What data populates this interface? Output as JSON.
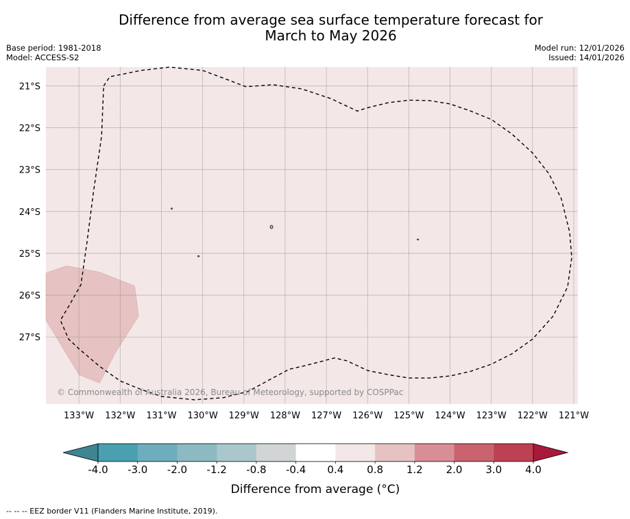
{
  "title_line1": "Difference from average sea surface temperature forecast for",
  "title_line2": "March to May 2026",
  "base_period": "Base period: 1981-2018",
  "model": "Model: ACCESS-S2",
  "model_run": "Model run: 12/01/2026",
  "issued": "Issued: 14/01/2026",
  "copyright": "© Commonwealth of Australia 2026, Bureau of Meteorology, supported by COSPPac",
  "footer": "--  --  -- EEZ border V11 (Flanders Marine Institute, 2019).",
  "map": {
    "lon_range": [
      -133.8,
      -120.9
    ],
    "lat_range": [
      -28.6,
      -20.55
    ],
    "lat_ticks": [
      {
        "value": -21,
        "label": "21°S"
      },
      {
        "value": -22,
        "label": "22°S"
      },
      {
        "value": -23,
        "label": "23°S"
      },
      {
        "value": -24,
        "label": "24°S"
      },
      {
        "value": -25,
        "label": "25°S"
      },
      {
        "value": -26,
        "label": "26°S"
      },
      {
        "value": -27,
        "label": "27°S"
      }
    ],
    "lon_ticks": [
      {
        "value": -133,
        "label": "133°W"
      },
      {
        "value": -132,
        "label": "132°W"
      },
      {
        "value": -131,
        "label": "131°W"
      },
      {
        "value": -130,
        "label": "130°W"
      },
      {
        "value": -129,
        "label": "129°W"
      },
      {
        "value": -128,
        "label": "128°W"
      },
      {
        "value": -127,
        "label": "127°W"
      },
      {
        "value": -126,
        "label": "126°W"
      },
      {
        "value": -125,
        "label": "125°W"
      },
      {
        "value": -124,
        "label": "124°W"
      },
      {
        "value": -123,
        "label": "123°W"
      },
      {
        "value": -122,
        "label": "122°W"
      },
      {
        "value": -121,
        "label": "121°W"
      }
    ],
    "background_anomaly_band": "0.4 to 0.8",
    "warm_region_band": "0.8 to 1.2",
    "warm_region": [
      [
        -133.8,
        -25.47
      ],
      [
        -133.3,
        -25.3
      ],
      [
        -132.5,
        -25.45
      ],
      [
        -131.65,
        -25.78
      ],
      [
        -131.55,
        -26.5
      ],
      [
        -132.1,
        -27.35
      ],
      [
        -132.5,
        -28.1
      ],
      [
        -133.0,
        -27.9
      ],
      [
        -133.8,
        -26.6
      ]
    ],
    "eez_border": [
      [
        -132.4,
        -21.0
      ],
      [
        -132.25,
        -20.78
      ],
      [
        -131.5,
        -20.63
      ],
      [
        -130.8,
        -20.55
      ],
      [
        -130.0,
        -20.63
      ],
      [
        -129.4,
        -20.85
      ],
      [
        -128.95,
        -21.02
      ],
      [
        -128.3,
        -20.97
      ],
      [
        -127.6,
        -21.07
      ],
      [
        -126.9,
        -21.3
      ],
      [
        -126.25,
        -21.6
      ],
      [
        -126.0,
        -21.52
      ],
      [
        -125.5,
        -21.4
      ],
      [
        -125.0,
        -21.34
      ],
      [
        -124.5,
        -21.35
      ],
      [
        -124.0,
        -21.43
      ],
      [
        -123.5,
        -21.6
      ],
      [
        -123.0,
        -21.8
      ],
      [
        -122.5,
        -22.15
      ],
      [
        -122.0,
        -22.6
      ],
      [
        -121.6,
        -23.1
      ],
      [
        -121.3,
        -23.7
      ],
      [
        -121.1,
        -24.5
      ],
      [
        -121.05,
        -25.1
      ],
      [
        -121.15,
        -25.8
      ],
      [
        -121.5,
        -26.5
      ],
      [
        -122.0,
        -27.05
      ],
      [
        -122.5,
        -27.4
      ],
      [
        -123.0,
        -27.65
      ],
      [
        -123.5,
        -27.82
      ],
      [
        -124.0,
        -27.93
      ],
      [
        -124.5,
        -27.98
      ],
      [
        -125.0,
        -27.98
      ],
      [
        -125.5,
        -27.9
      ],
      [
        -126.0,
        -27.8
      ],
      [
        -126.5,
        -27.57
      ],
      [
        -126.8,
        -27.5
      ],
      [
        -127.5,
        -27.68
      ],
      [
        -127.9,
        -27.77
      ],
      [
        -128.3,
        -27.98
      ],
      [
        -128.9,
        -28.3
      ],
      [
        -129.5,
        -28.45
      ],
      [
        -130.2,
        -28.5
      ],
      [
        -131.0,
        -28.42
      ],
      [
        -131.5,
        -28.25
      ],
      [
        -132.0,
        -28.05
      ],
      [
        -132.5,
        -27.7
      ],
      [
        -133.0,
        -27.28
      ],
      [
        -133.25,
        -27.05
      ],
      [
        -133.45,
        -26.6
      ],
      [
        -133.25,
        -26.27
      ],
      [
        -132.95,
        -25.75
      ],
      [
        -132.8,
        -24.7
      ],
      [
        -132.65,
        -23.55
      ],
      [
        -132.45,
        -22.2
      ],
      [
        -132.4,
        -21.0
      ]
    ],
    "islands": [
      {
        "name": "island-a",
        "lon": -128.33,
        "lat": -24.37
      },
      {
        "name": "island-b",
        "lon": -130.1,
        "lat": -25.07
      },
      {
        "name": "island-c",
        "lon": -124.78,
        "lat": -24.67
      },
      {
        "name": "island-d",
        "lon": -130.75,
        "lat": -23.93
      }
    ]
  },
  "colorbar": {
    "title": "Difference from average (°C)",
    "ticks": [
      "-4.0",
      "-3.0",
      "-2.0",
      "-1.2",
      "-0.8",
      "-0.4",
      "0.4",
      "0.8",
      "1.2",
      "2.0",
      "3.0",
      "4.0"
    ],
    "extend_low_color": "#3d8593",
    "extend_high_color": "#a8193b",
    "colors": [
      "#4a9fb0",
      "#6eadbb",
      "#8db9c3",
      "#aac7cb",
      "#d1d5d6",
      "#ffffff",
      "#f4e7e7",
      "#e6c3c2",
      "#d78f95",
      "#c9636d",
      "#bd4152"
    ]
  },
  "colors": {
    "background_fill": "#f4e7e7",
    "warm_region_fill": "#e6c3c2",
    "grid": "#777777"
  }
}
